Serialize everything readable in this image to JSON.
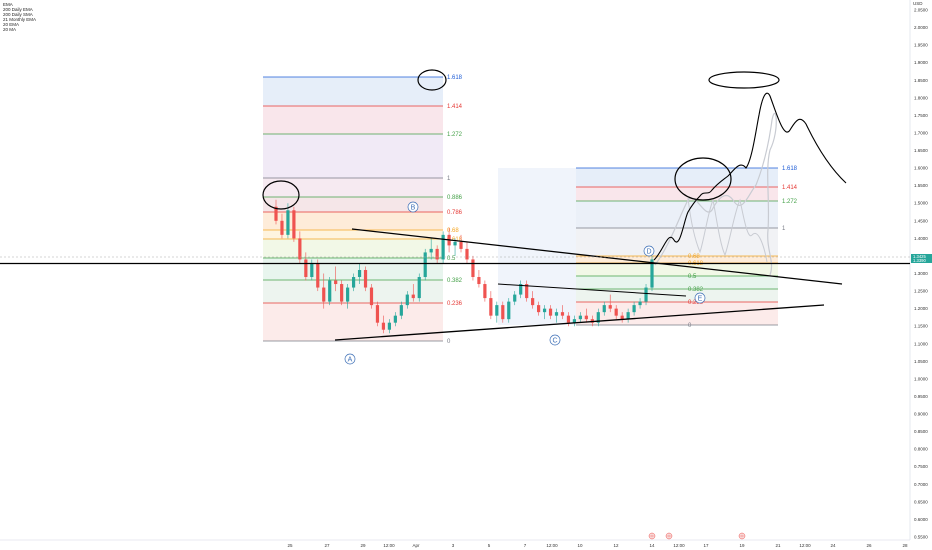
{
  "legend": [
    "EMA",
    "200 Daily EMA",
    "200 Daily SMA",
    "21 Monthly EMA",
    "20 EMA",
    "20 MA"
  ],
  "currency_label": "USD",
  "price_badge": "1.3425",
  "price_badge_sub": "1.3390",
  "colors": {
    "bull": "#26a69a",
    "bear": "#ef5350",
    "fib_blue": "#1c5bd6",
    "fib_red": "#e53935",
    "fib_green": "#43a047",
    "fib_orange": "#f5a623",
    "fib_gray": "#787b86",
    "point_label": "#3d6fb6"
  },
  "chart_data": {
    "type": "candlestick",
    "yaxis": {
      "ticks": [
        "2.0500",
        "2.0000",
        "1.9500",
        "1.9000",
        "1.8500",
        "1.8000",
        "1.7500",
        "1.7000",
        "1.6500",
        "1.6000",
        "1.5500",
        "1.5000",
        "1.4500",
        "1.4000",
        "1.3500",
        "1.3000",
        "1.2500",
        "1.2000",
        "1.1500",
        "1.1000",
        "1.0500",
        "1.0000",
        "0.9500",
        "0.9000",
        "0.8500",
        "0.8000",
        "0.7500",
        "0.7000",
        "0.6500",
        "0.6000",
        "0.5500"
      ],
      "ylim": [
        0.52,
        2.08
      ]
    },
    "xaxis": {
      "ticks": [
        "25",
        "27",
        "29",
        "12:00",
        "Apr",
        "3",
        "5",
        "7",
        "12:00",
        "10",
        "12",
        "14",
        "12:00",
        "17",
        "19",
        "21",
        "12:00",
        "24",
        "26",
        "28"
      ]
    },
    "candles": [
      [
        1.49,
        1.51,
        1.44,
        1.45
      ],
      [
        1.45,
        1.47,
        1.4,
        1.41
      ],
      [
        1.41,
        1.5,
        1.4,
        1.48
      ],
      [
        1.48,
        1.49,
        1.39,
        1.4
      ],
      [
        1.4,
        1.42,
        1.33,
        1.34
      ],
      [
        1.34,
        1.36,
        1.28,
        1.29
      ],
      [
        1.29,
        1.34,
        1.28,
        1.33
      ],
      [
        1.33,
        1.34,
        1.25,
        1.26
      ],
      [
        1.26,
        1.3,
        1.2,
        1.22
      ],
      [
        1.22,
        1.29,
        1.21,
        1.28
      ],
      [
        1.28,
        1.32,
        1.25,
        1.27
      ],
      [
        1.27,
        1.28,
        1.21,
        1.22
      ],
      [
        1.22,
        1.27,
        1.2,
        1.26
      ],
      [
        1.26,
        1.3,
        1.25,
        1.29
      ],
      [
        1.29,
        1.33,
        1.27,
        1.31
      ],
      [
        1.31,
        1.32,
        1.25,
        1.26
      ],
      [
        1.26,
        1.27,
        1.2,
        1.21
      ],
      [
        1.21,
        1.22,
        1.15,
        1.16
      ],
      [
        1.16,
        1.18,
        1.13,
        1.14
      ],
      [
        1.14,
        1.17,
        1.13,
        1.16
      ],
      [
        1.16,
        1.19,
        1.15,
        1.18
      ],
      [
        1.18,
        1.22,
        1.17,
        1.21
      ],
      [
        1.21,
        1.25,
        1.2,
        1.24
      ],
      [
        1.24,
        1.27,
        1.22,
        1.23
      ],
      [
        1.23,
        1.3,
        1.22,
        1.29
      ],
      [
        1.29,
        1.37,
        1.28,
        1.36
      ],
      [
        1.36,
        1.4,
        1.34,
        1.37
      ],
      [
        1.37,
        1.38,
        1.33,
        1.34
      ],
      [
        1.34,
        1.42,
        1.33,
        1.41
      ],
      [
        1.41,
        1.43,
        1.36,
        1.38
      ],
      [
        1.38,
        1.4,
        1.35,
        1.39
      ],
      [
        1.39,
        1.41,
        1.36,
        1.37
      ],
      [
        1.37,
        1.39,
        1.33,
        1.34
      ],
      [
        1.34,
        1.35,
        1.28,
        1.29
      ],
      [
        1.29,
        1.31,
        1.26,
        1.27
      ],
      [
        1.27,
        1.28,
        1.22,
        1.23
      ],
      [
        1.23,
        1.25,
        1.17,
        1.18
      ],
      [
        1.18,
        1.22,
        1.16,
        1.21
      ],
      [
        1.21,
        1.22,
        1.16,
        1.17
      ],
      [
        1.17,
        1.23,
        1.16,
        1.22
      ],
      [
        1.22,
        1.25,
        1.21,
        1.24
      ],
      [
        1.24,
        1.28,
        1.23,
        1.27
      ],
      [
        1.27,
        1.28,
        1.22,
        1.23
      ],
      [
        1.23,
        1.25,
        1.2,
        1.21
      ],
      [
        1.21,
        1.22,
        1.18,
        1.19
      ],
      [
        1.19,
        1.21,
        1.17,
        1.2
      ],
      [
        1.2,
        1.21,
        1.17,
        1.18
      ],
      [
        1.18,
        1.2,
        1.16,
        1.19
      ],
      [
        1.19,
        1.21,
        1.17,
        1.18
      ],
      [
        1.18,
        1.19,
        1.15,
        1.16
      ],
      [
        1.16,
        1.18,
        1.15,
        1.17
      ],
      [
        1.17,
        1.19,
        1.16,
        1.18
      ],
      [
        1.18,
        1.2,
        1.16,
        1.17
      ],
      [
        1.17,
        1.18,
        1.15,
        1.16
      ],
      [
        1.16,
        1.2,
        1.15,
        1.19
      ],
      [
        1.19,
        1.22,
        1.18,
        1.21
      ],
      [
        1.21,
        1.24,
        1.19,
        1.2
      ],
      [
        1.2,
        1.21,
        1.17,
        1.18
      ],
      [
        1.18,
        1.19,
        1.16,
        1.17
      ],
      [
        1.17,
        1.2,
        1.16,
        1.19
      ],
      [
        1.19,
        1.22,
        1.18,
        1.21
      ],
      [
        1.21,
        1.23,
        1.2,
        1.22
      ],
      [
        1.22,
        1.27,
        1.21,
        1.26
      ],
      [
        1.26,
        1.35,
        1.25,
        1.34
      ]
    ],
    "annotations": {
      "points": [
        "A",
        "B",
        "C",
        "D",
        "E"
      ],
      "fib_left": [
        "1.618",
        "1.414",
        "1.272",
        "1",
        "0.886",
        "0.786",
        "0.68",
        "0.618",
        "0.5",
        "0.382",
        "0.236",
        "0"
      ],
      "fib_right": [
        "1.618",
        "1.414",
        "1.272",
        "1",
        "0.68",
        "0.618",
        "0.5",
        "0.382",
        "0.236",
        "0"
      ]
    }
  }
}
